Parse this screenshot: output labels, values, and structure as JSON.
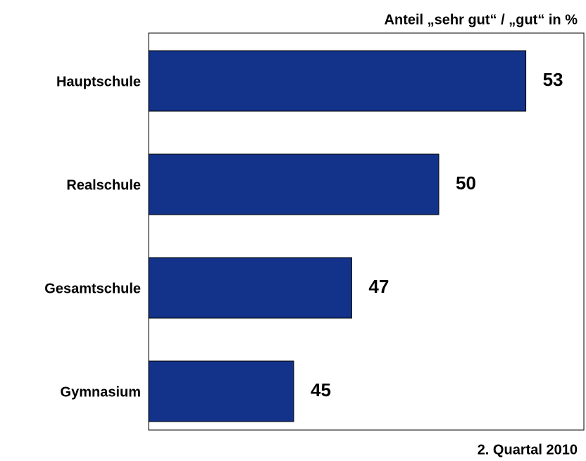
{
  "chart_data": {
    "type": "barh",
    "title": "Anteil „sehr gut“ / „gut“ in %",
    "footnote": "2. Quartal 2010",
    "categories": [
      "Hauptschule",
      "Realschule",
      "Gesamtschule",
      "Gymnasium"
    ],
    "values": [
      53,
      50,
      47,
      45
    ],
    "color": "#13338a",
    "xlim": [
      40,
      55
    ]
  }
}
